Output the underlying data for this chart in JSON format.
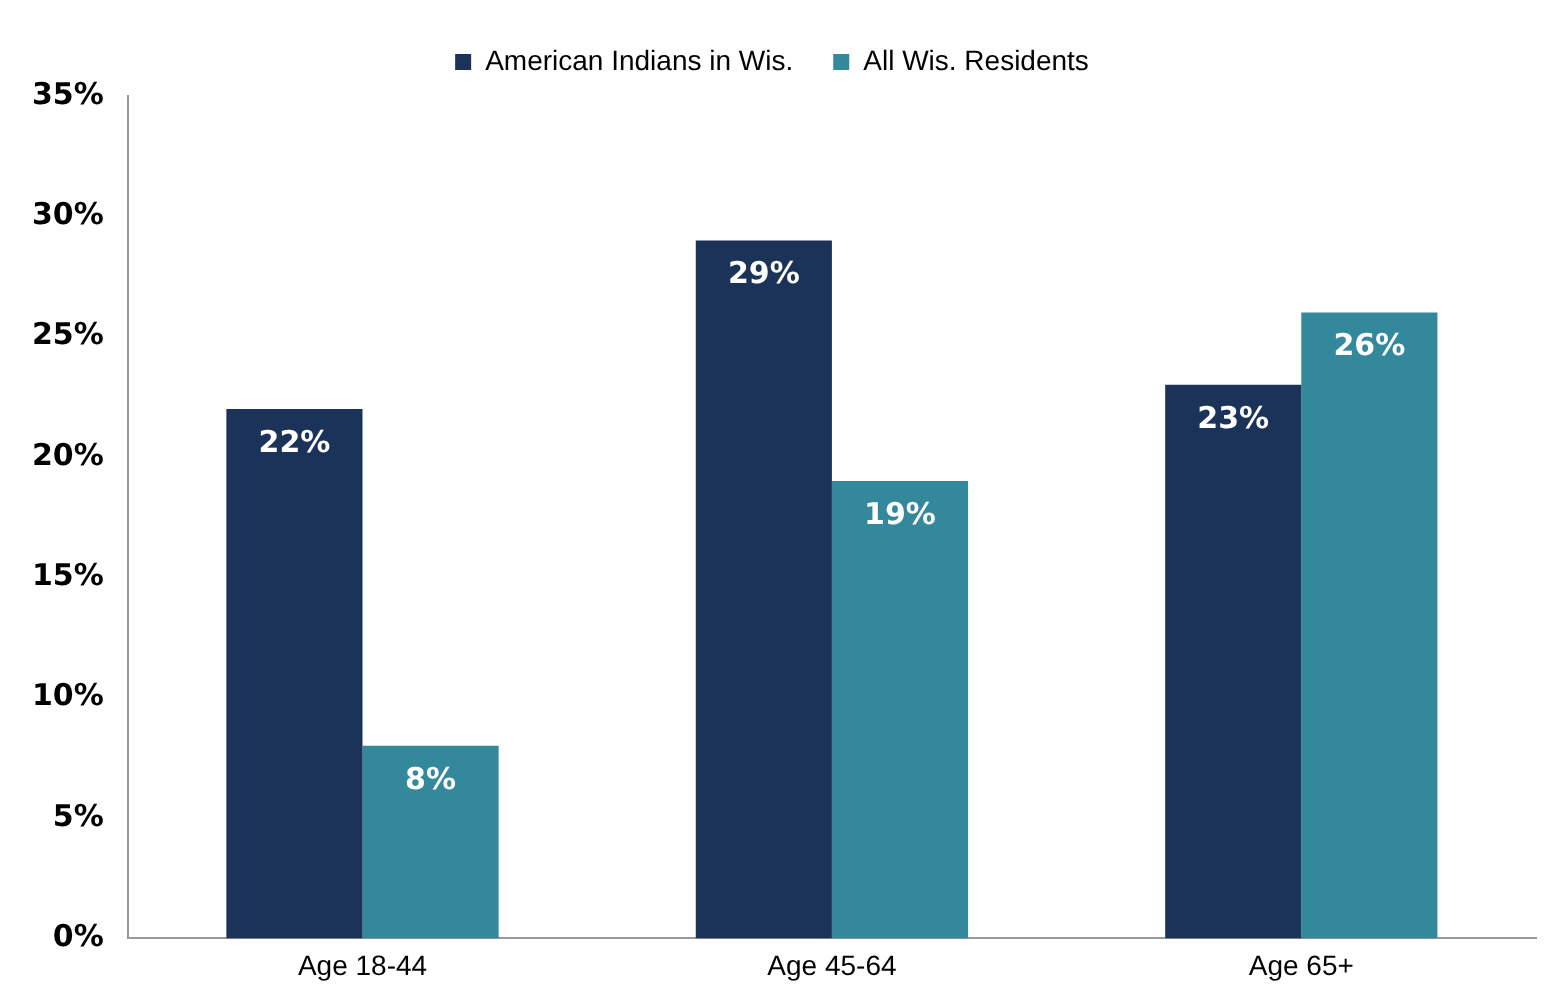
{
  "chart_data": {
    "type": "bar",
    "categories": [
      "Age 18-44",
      "Age 45-64",
      "Age 65+"
    ],
    "series": [
      {
        "name": "American Indians in Wis.",
        "color": "#1b3358",
        "values": [
          22,
          29,
          23
        ],
        "value_labels": [
          "22%",
          "29%",
          "23%"
        ]
      },
      {
        "name": "All Wis. Residents",
        "color": "#33889b",
        "values": [
          8,
          19,
          26
        ],
        "value_labels": [
          "8%",
          "19%",
          "26%"
        ]
      }
    ],
    "ylim": [
      0,
      35
    ],
    "yticks": [
      {
        "value": 0,
        "label": "0%"
      },
      {
        "value": 5,
        "label": "5%"
      },
      {
        "value": 10,
        "label": "10%"
      },
      {
        "value": 15,
        "label": "15%"
      },
      {
        "value": 20,
        "label": "20%"
      },
      {
        "value": 25,
        "label": "25%"
      },
      {
        "value": 30,
        "label": "30%"
      },
      {
        "value": 35,
        "label": "35%"
      }
    ],
    "grid": false,
    "legend": "top"
  }
}
